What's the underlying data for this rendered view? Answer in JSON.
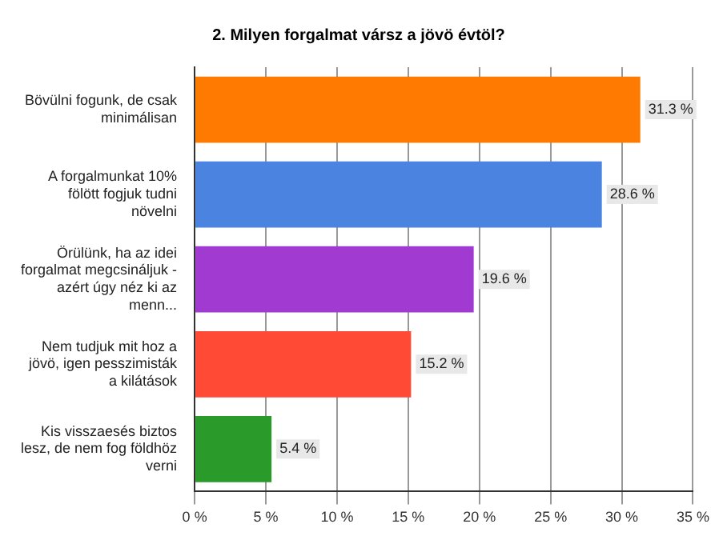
{
  "chart_data": {
    "type": "bar",
    "orientation": "horizontal",
    "title": "2. Milyen forgalmat vársz a jövö évtöl?",
    "categories": [
      "Bövülni fogunk, de csak minimálisan",
      "A forgalmunkat 10% fölött fogjuk tudni növelni",
      "Örülünk, ha az idei forgalmat megcsináljuk - azért úgy néz ki az menn...",
      "Nem tudjuk mit hoz a jövö, igen pesszimisták a kilátások",
      "Kis visszaesés biztos lesz, de nem fog földhöz verni"
    ],
    "values": [
      31.3,
      28.6,
      19.6,
      15.2,
      5.4
    ],
    "value_labels": [
      "31.3 %",
      "28.6 %",
      "19.6 %",
      "15.2 %",
      "5.4 %"
    ],
    "colors": [
      "#ff7a00",
      "#4a84e0",
      "#a03ad0",
      "#ff4a36",
      "#2a9a2a"
    ],
    "xlim": [
      0,
      35
    ],
    "xticks": [
      {
        "value": 0,
        "label": "0 %"
      },
      {
        "value": 5,
        "label": "5 %"
      },
      {
        "value": 10,
        "label": "10 %"
      },
      {
        "value": 15,
        "label": "15 %"
      },
      {
        "value": 20,
        "label": "20 %"
      },
      {
        "value": 25,
        "label": "25 %"
      },
      {
        "value": 30,
        "label": "30 %"
      },
      {
        "value": 35,
        "label": "35 %"
      }
    ],
    "grid": "x"
  }
}
